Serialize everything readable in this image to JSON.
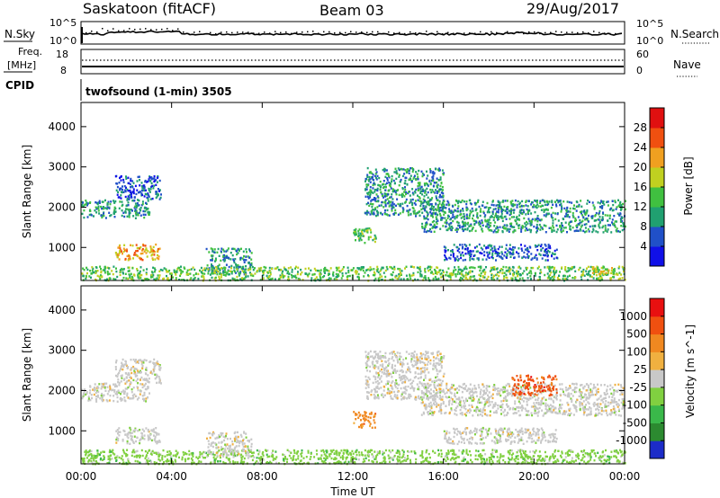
{
  "header": {
    "site": "Saskatoon (fitACF)",
    "beam": "Beam 03",
    "date": "29/Aug/2017"
  },
  "noise_panel": {
    "left_label": "N.Sky",
    "right_label": "N.Search",
    "left_ticks": [
      "10^5",
      "10^0"
    ],
    "right_ticks": [
      "10^5",
      "10^0"
    ]
  },
  "freq_panel": {
    "left_label_line1": "Freq.",
    "left_label_line2": "[MHz]",
    "left_ticks": [
      "18",
      "8"
    ],
    "right_label": "Nave",
    "right_ticks": [
      "60",
      "0"
    ]
  },
  "cpid": {
    "label": "CPID",
    "value": "twofsound (1-min) 3505"
  },
  "chart_data": [
    {
      "type": "heatmap",
      "panel": "power",
      "xlabel": "",
      "ylabel": "Slant Range [km]",
      "x_tick_labels": [
        "00:00",
        "04:00",
        "08:00",
        "12:00",
        "16:00",
        "20:00",
        "00:00"
      ],
      "y_ticks": [
        1000,
        2000,
        3000,
        4000
      ],
      "ylim": [
        180,
        4600
      ],
      "xlim_hours": [
        0,
        24
      ],
      "colorbar": {
        "label": "Power [dB]",
        "tick_labels": [
          "4",
          "8",
          "12",
          "16",
          "20",
          "24",
          "28"
        ],
        "colors": [
          "#1010e8",
          "#2050c8",
          "#20a070",
          "#40c040",
          "#c0d020",
          "#f0a020",
          "#f05010",
          "#e01010"
        ]
      },
      "regions": [
        {
          "t0": 0.0,
          "t1": 3.0,
          "r0": 1750,
          "r1": 2200,
          "level": 2
        },
        {
          "t0": 1.5,
          "t1": 3.5,
          "r0": 2200,
          "r1": 2800,
          "level": 1
        },
        {
          "t0": 1.5,
          "t1": 3.5,
          "r0": 700,
          "r1": 1100,
          "level": 5
        },
        {
          "t0": 5.5,
          "t1": 7.5,
          "r0": 350,
          "r1": 1000,
          "level": 2
        },
        {
          "t0": 0.0,
          "t1": 24.0,
          "r0": 200,
          "r1": 550,
          "level": 3
        },
        {
          "t0": 12.5,
          "t1": 16.0,
          "r0": 1800,
          "r1": 3000,
          "level": 2
        },
        {
          "t0": 12.0,
          "t1": 13.0,
          "r0": 1100,
          "r1": 1500,
          "level": 3
        },
        {
          "t0": 15.0,
          "t1": 24.0,
          "r0": 1400,
          "r1": 2200,
          "level": 2
        },
        {
          "t0": 16.0,
          "t1": 21.0,
          "r0": 700,
          "r1": 1100,
          "level": 1
        },
        {
          "t0": 22.5,
          "t1": 24.0,
          "r0": 350,
          "r1": 550,
          "level": 4
        }
      ]
    },
    {
      "type": "heatmap",
      "panel": "velocity",
      "xlabel": "Time UT",
      "ylabel": "Slant Range [km]",
      "x_tick_labels": [
        "00:00",
        "04:00",
        "08:00",
        "12:00",
        "16:00",
        "20:00",
        "00:00"
      ],
      "y_ticks": [
        1000,
        2000,
        3000,
        4000
      ],
      "ylim": [
        180,
        4600
      ],
      "xlim_hours": [
        0,
        24
      ],
      "colorbar": {
        "label": "Velocity [m s^-1]",
        "tick_labels": [
          "1000",
          "500",
          "100",
          "25",
          "-25",
          "-100",
          "-500",
          "-1000"
        ],
        "colors": [
          "#1c2cc8",
          "#2c8a30",
          "#3ab84a",
          "#80d040",
          "#c8c8c8",
          "#f0b040",
          "#f08820",
          "#f05010",
          "#e81010"
        ]
      },
      "regions": [
        {
          "t0": 0.0,
          "t1": 3.0,
          "r0": 1750,
          "r1": 2200,
          "level": 4
        },
        {
          "t0": 1.5,
          "t1": 3.5,
          "r0": 2200,
          "r1": 2800,
          "level": 4
        },
        {
          "t0": 1.5,
          "t1": 3.5,
          "r0": 700,
          "r1": 1100,
          "level": 4
        },
        {
          "t0": 0.0,
          "t1": 24.0,
          "r0": 200,
          "r1": 550,
          "level": 3
        },
        {
          "t0": 5.5,
          "t1": 7.5,
          "r0": 350,
          "r1": 1000,
          "level": 4
        },
        {
          "t0": 12.5,
          "t1": 16.0,
          "r0": 1800,
          "r1": 3000,
          "level": 4
        },
        {
          "t0": 12.0,
          "t1": 13.0,
          "r0": 1100,
          "r1": 1500,
          "level": 6
        },
        {
          "t0": 15.0,
          "t1": 24.0,
          "r0": 1400,
          "r1": 2200,
          "level": 4
        },
        {
          "t0": 19.0,
          "t1": 21.0,
          "r0": 1900,
          "r1": 2400,
          "level": 7
        },
        {
          "t0": 16.0,
          "t1": 21.0,
          "r0": 700,
          "r1": 1100,
          "level": 4
        }
      ]
    }
  ]
}
